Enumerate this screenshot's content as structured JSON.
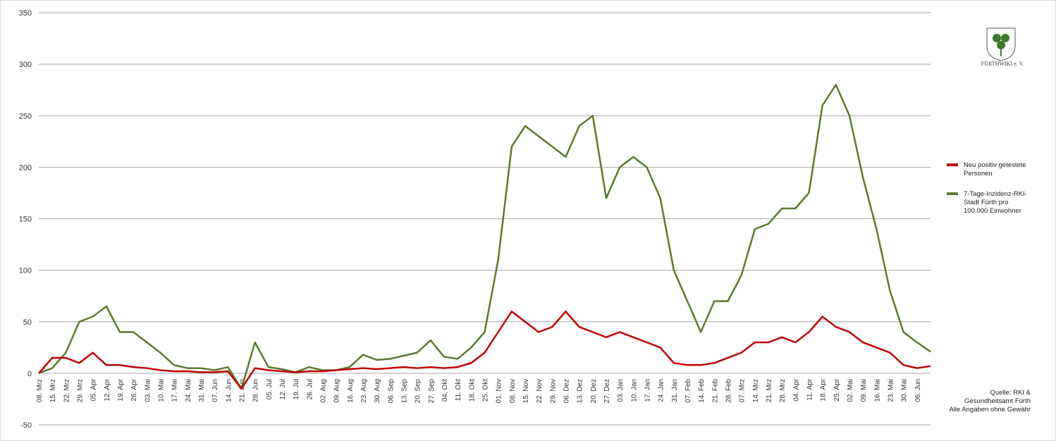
{
  "chart_data": {
    "type": "line",
    "categories": [
      "08. Mrz",
      "15. Mrz",
      "22. Mrz",
      "29. Mrz",
      "05. Apr",
      "12. Apr",
      "19. Apr",
      "26. Apr",
      "03. Mai",
      "10. Mai",
      "17. Mai",
      "24. Mai",
      "31. Mai",
      "07. Jun",
      "14. Jun",
      "21. Jun",
      "28. Jun",
      "05. Jul",
      "12. Jul",
      "19. Jul",
      "26. Jul",
      "02. Aug",
      "09. Aug",
      "16. Aug",
      "23. Aug",
      "30. Aug",
      "06. Sep",
      "13. Sep",
      "20. Sep",
      "27. Sep",
      "04. Okt",
      "11. Okt",
      "18. Okt",
      "25. Okt",
      "01. Nov",
      "08. Nov",
      "15. Nov",
      "22. Nov",
      "29. Nov",
      "06. Dez",
      "13. Dez",
      "20. Dez",
      "27. Dez",
      "03. Jan",
      "10. Jan",
      "17. Jan",
      "24. Jan",
      "31. Jan",
      "07. Feb",
      "14. Feb",
      "21. Feb",
      "28. Feb",
      "07. Mrz",
      "14. Mrz",
      "21. Mrz",
      "28. Mrz",
      "04. Apr",
      "11. Apr",
      "18. Apr",
      "25. Apr",
      "02. Mai",
      "09. Mai",
      "16. Mai",
      "23. Mai",
      "30. Mai",
      "06. Jun",
      null
    ],
    "series": [
      {
        "name": "Neu positiv getestete Personen",
        "color": "#c00000",
        "values": [
          0,
          15,
          15,
          10,
          20,
          8,
          8,
          6,
          5,
          3,
          2,
          2,
          1,
          1,
          2,
          -15,
          5,
          3,
          2,
          1,
          2,
          2,
          3,
          4,
          5,
          4,
          5,
          6,
          5,
          6,
          5,
          6,
          10,
          20,
          40,
          60,
          50,
          40,
          45,
          60,
          45,
          40,
          35,
          40,
          35,
          30,
          25,
          10,
          8,
          8,
          10,
          15,
          20,
          30,
          30,
          35,
          30,
          40,
          55,
          45,
          40,
          30,
          25,
          20,
          8,
          5,
          7
        ]
      },
      {
        "name": "7-Tage-Inzidenz-RKI-Stadt Fürth pro 100.000 Einwohner",
        "color": "#5a7a2e",
        "values": [
          0,
          5,
          20,
          50,
          55,
          65,
          40,
          40,
          30,
          20,
          8,
          5,
          5,
          3,
          6,
          -15,
          30,
          6,
          4,
          1,
          6,
          3,
          3,
          6,
          18,
          13,
          14,
          17,
          20,
          32,
          16,
          14,
          25,
          40,
          110,
          220,
          240,
          230,
          220,
          210,
          240,
          250,
          170,
          200,
          210,
          200,
          170,
          100,
          70,
          40,
          70,
          70,
          95,
          140,
          145,
          160,
          160,
          175,
          260,
          280,
          250,
          190,
          140,
          80,
          40,
          30,
          21
        ]
      }
    ],
    "ylim": [
      -50,
      350
    ],
    "yticks": [
      -50,
      0,
      50,
      100,
      150,
      200,
      250,
      300,
      350
    ],
    "grid": true,
    "legend": "right"
  },
  "logo": "FÜRTHWIKI e. V.",
  "source": [
    "Quelle: RKI &",
    "Gesundheitsamt Fürth",
    "Alle Angaben ohne Gewähr"
  ]
}
